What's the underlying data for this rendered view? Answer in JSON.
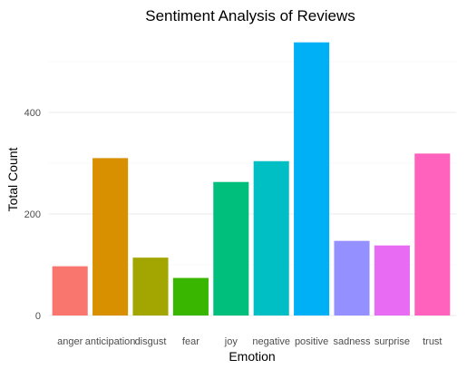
{
  "chart_data": {
    "type": "bar",
    "title": "Sentiment Analysis of Reviews",
    "xlabel": "Emotion",
    "ylabel": "Total Count",
    "categories": [
      "anger",
      "anticipation",
      "disgust",
      "fear",
      "joy",
      "negative",
      "positive",
      "sadness",
      "surprise",
      "trust"
    ],
    "values": [
      97,
      310,
      114,
      74,
      263,
      304,
      538,
      147,
      138,
      319
    ],
    "colors": [
      "#F8766D",
      "#D89000",
      "#A3A500",
      "#39B600",
      "#00BF7D",
      "#00BFC4",
      "#00B0F6",
      "#9590FF",
      "#E76BF3",
      "#FF62BC"
    ],
    "yticks": [
      0,
      200,
      400
    ],
    "ylim": [
      0,
      560
    ],
    "grid": true,
    "legend": "none"
  }
}
